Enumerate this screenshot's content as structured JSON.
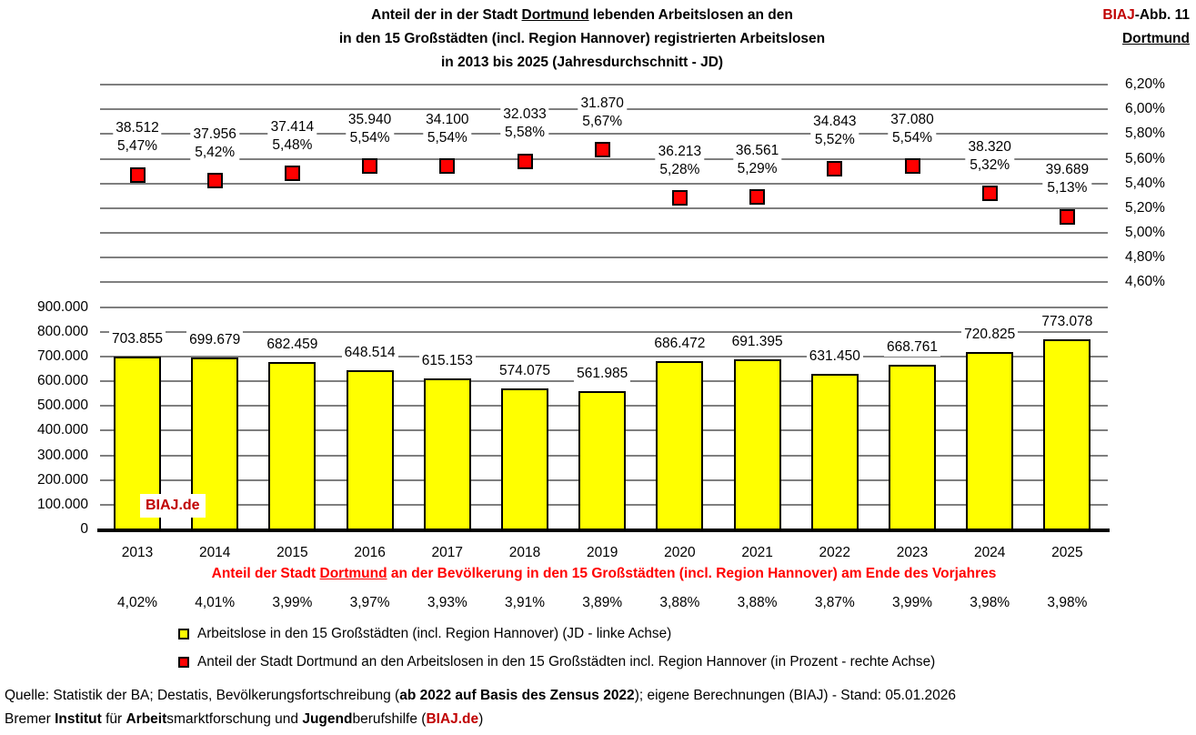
{
  "watermark": "BIAJ.de",
  "header": {
    "title_lines": [
      [
        {
          "t": "Anteil der in der Stadt ",
          "b": 1
        },
        {
          "t": "Dortmund",
          "b": 1,
          "u": 1
        },
        {
          "t": " lebenden Arbeitslosen an den",
          "b": 1
        }
      ],
      [
        {
          "t": "in den 15 Großstädten (incl. Region Hannover) registrierten Arbeitslosen",
          "b": 1
        }
      ],
      [
        {
          "t": "in 2013 bis 2025 ",
          "b": 1
        },
        {
          "t": "(Jahresdurchschnitt - JD)"
        }
      ]
    ],
    "corner_lines": [
      [
        {
          "t": "BIAJ",
          "b": 1,
          "c": "#C00000"
        },
        {
          "t": "-Abb. 11",
          "b": 1
        }
      ],
      [
        {
          "t": "Dortmund",
          "b": 1,
          "u": 1
        }
      ]
    ]
  },
  "chart_data": {
    "type": "combo (bar + scatter-square, dual axis)",
    "categories": [
      "2013",
      "2014",
      "2015",
      "2016",
      "2017",
      "2018",
      "2019",
      "2020",
      "2021",
      "2022",
      "2023",
      "2024",
      "2025"
    ],
    "series": [
      {
        "name": "Arbeitslose in den 15 Großstädten (incl. Region Hannover) (JD - linke Achse)",
        "type": "bar",
        "axis": "left",
        "color": "#FFFF00",
        "values": [
          703855,
          699679,
          682459,
          648514,
          615153,
          574075,
          561985,
          686472,
          691395,
          631450,
          668761,
          720825,
          773078
        ],
        "labels": [
          "703.855",
          "699.679",
          "682.459",
          "648.514",
          "615.153",
          "574.075",
          "561.985",
          "686.472",
          "691.395",
          "631.450",
          "668.761",
          "720.825",
          "773.078"
        ]
      },
      {
        "name": "Anteil der Stadt Dortmund an den Arbeitslosen in den 15 Großstädten incl. Region Hannover (in Prozent - rechte Achse)",
        "type": "scatter",
        "marker": "square",
        "axis": "right",
        "color": "#FF0000",
        "values": [
          5.47,
          5.42,
          5.48,
          5.54,
          5.54,
          5.58,
          5.67,
          5.28,
          5.29,
          5.52,
          5.54,
          5.32,
          5.13
        ],
        "labels_percent": [
          "5,47%",
          "5,42%",
          "5,48%",
          "5,54%",
          "5,54%",
          "5,58%",
          "5,67%",
          "5,28%",
          "5,29%",
          "5,52%",
          "5,54%",
          "5,32%",
          "5,13%"
        ],
        "values_count": [
          38512,
          37956,
          37414,
          35940,
          34100,
          32033,
          31870,
          36213,
          36561,
          34843,
          37080,
          38320,
          39689
        ],
        "labels_count": [
          "38.512",
          "37.956",
          "37.414",
          "35.940",
          "34.100",
          "32.033",
          "31.870",
          "36.213",
          "36.561",
          "34.843",
          "37.080",
          "38.320",
          "39.689"
        ]
      }
    ],
    "left_axis": {
      "min": 0,
      "max_labeled": 900000,
      "tick": 100000,
      "labels": [
        "900.000",
        "800.000",
        "700.000",
        "600.000",
        "500.000",
        "400.000",
        "300.000",
        "200.000",
        "100.000",
        "0"
      ]
    },
    "right_axis": {
      "max": 6.2,
      "min_labeled": 4.6,
      "tick": 0.2,
      "labels": [
        "6,20%",
        "6,00%",
        "5,80%",
        "5,60%",
        "5,40%",
        "5,20%",
        "5,00%",
        "4,80%",
        "4,60%"
      ]
    },
    "gridline_color": "#7F7F7F",
    "grid": true,
    "legend_position": "bottom-left",
    "population_share_row": {
      "heading": [
        {
          "t": "Anteil der Stadt ",
          "b": 1,
          "c": "#FF0000"
        },
        {
          "t": "Dortmund",
          "b": 1,
          "u": 1,
          "c": "#FF0000"
        },
        {
          "t": " an der Bevölkerung in den 15 Großstädten (incl. Region Hannover) am Ende des Vorjahres",
          "b": 1,
          "c": "#FF0000"
        }
      ],
      "values": [
        "4,02%",
        "4,01%",
        "3,99%",
        "3,97%",
        "3,93%",
        "3,91%",
        "3,89%",
        "3,88%",
        "3,88%",
        "3,87%",
        "3,99%",
        "3,98%",
        "3,98%"
      ]
    }
  },
  "legend": {
    "items": [
      {
        "color": "#FFFF00",
        "label": "Arbeitslose in den 15 Großstädten (incl. Region Hannover) (JD - linke Achse)"
      },
      {
        "color": "#FF0000",
        "label": "Anteil der Stadt Dortmund an den Arbeitslosen in den 15 Großstädten incl. Region Hannover (in Prozent - rechte Achse)"
      }
    ]
  },
  "source_lines": [
    [
      {
        "t": "Quelle: Statistik der BA; Destatis, Bevölkerungsfortschreibung ("
      },
      {
        "t": "ab 2022 auf Basis des Zensus 2022",
        "b": 1
      },
      {
        "t": "); eigene Berechnungen (BIAJ) - Stand: 05.01.2026"
      }
    ],
    [
      {
        "t": "Bremer "
      },
      {
        "t": "Institut",
        "b": 1
      },
      {
        "t": " für "
      },
      {
        "t": "Arbeit",
        "b": 1
      },
      {
        "t": "smarktforschung und "
      },
      {
        "t": "Jugend",
        "b": 1
      },
      {
        "t": "berufshilfe ("
      },
      {
        "t": "BIAJ.de",
        "b": 1,
        "c": "#C00000"
      },
      {
        "t": ")"
      }
    ]
  ]
}
